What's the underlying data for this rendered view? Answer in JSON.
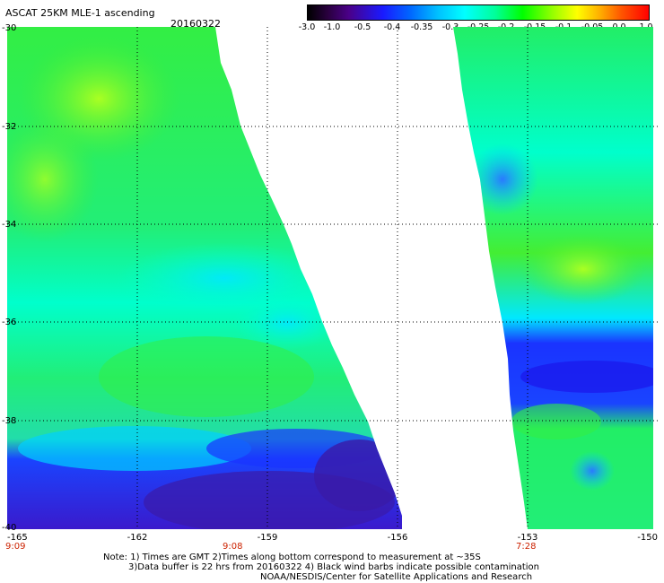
{
  "header": {
    "title": "ASCAT 25KM MLE-1 ascending",
    "date": "20160322"
  },
  "colorbar": {
    "labels": [
      "-3.0",
      "-1.0",
      "-0.5",
      "-0.4",
      "-0.35",
      "-0.3",
      "-0.25",
      "-0.2",
      "-0.15",
      "-0.1",
      "-0.05",
      "0.0",
      "1.0"
    ]
  },
  "map": {
    "lat_labels": [
      "-30",
      "-32",
      "-34",
      "-36",
      "-38",
      "-40"
    ],
    "lon_labels": [
      "-165",
      "-162",
      "-159",
      "-156",
      "-153",
      "-150"
    ],
    "time_labels": [
      "9:09",
      "9:08",
      "7:28"
    ],
    "colors": {
      "deep": "#4a1a9a",
      "dark_blue": "#1a1aee",
      "blue": "#2a7aff",
      "cyan": "#00e8ff",
      "aqua": "#00ffcc",
      "green": "#22ee44",
      "lime": "#88ff22"
    }
  },
  "notes": {
    "line1": "Note: 1) Times are GMT 2)Times along bottom correspond to measurement at ~35S",
    "line2": "3)Data buffer is 22 hrs from 20160322 4) Black wind barbs indicate possible contamination",
    "line3": "NOAA/NESDIS/Center for Satellite Applications and Research"
  }
}
